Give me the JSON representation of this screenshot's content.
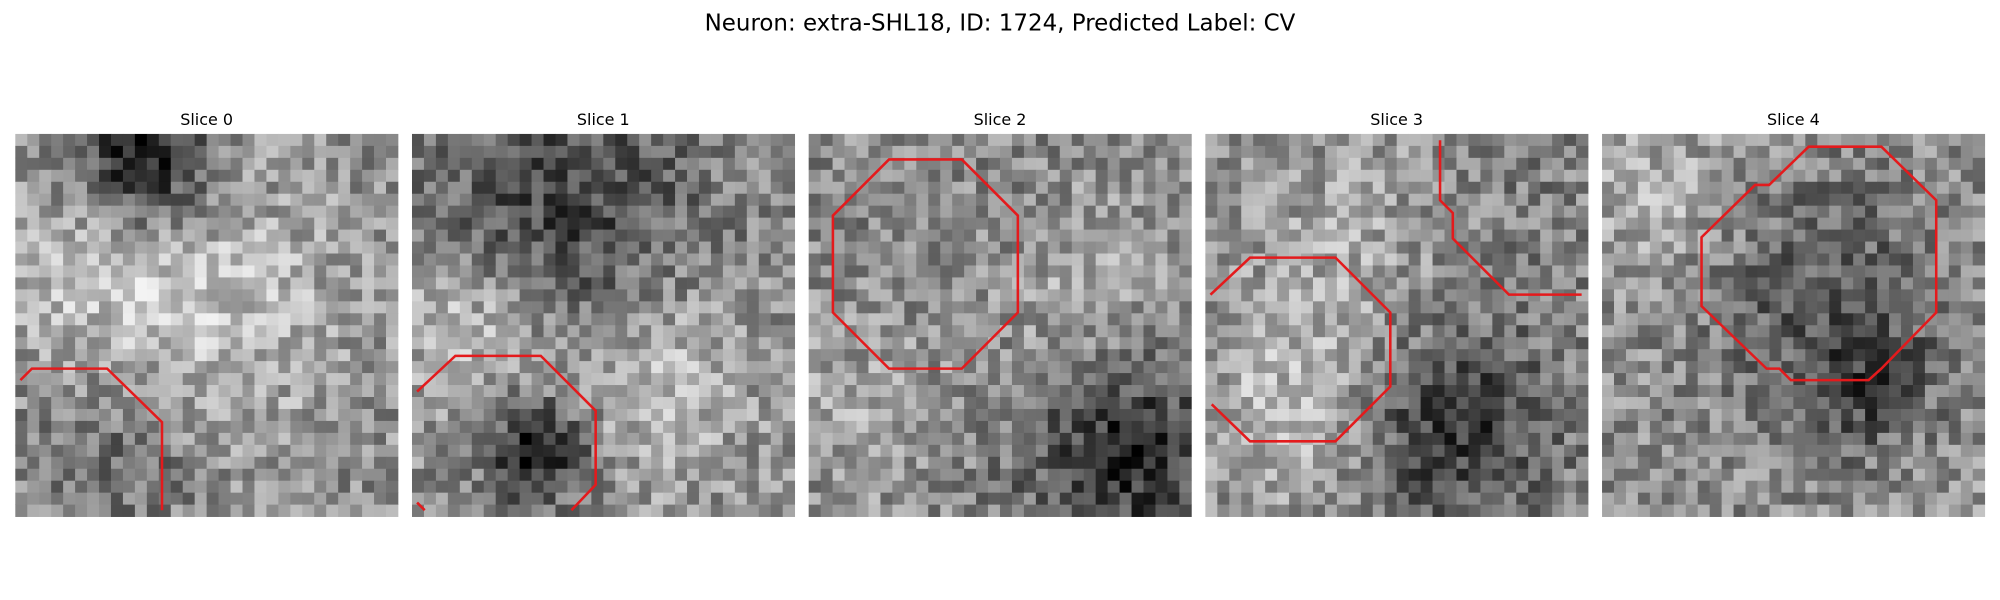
{
  "header": {
    "title": "Neuron: extra-SHL18, ID: 1724, Predicted Label: CV"
  },
  "panels": [
    {
      "title": "Slice 0"
    },
    {
      "title": "Slice 1"
    },
    {
      "title": "Slice 2"
    },
    {
      "title": "Slice 3"
    },
    {
      "title": "Slice 4"
    }
  ]
}
